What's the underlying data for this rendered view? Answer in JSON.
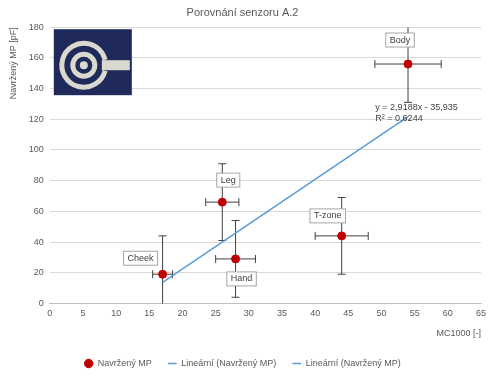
{
  "chart_data": {
    "type": "scatter",
    "title": "Porovnání senzoru A.2",
    "x_label": "MC1000 [-]",
    "y_label": "Navržený MP [pF]",
    "xlim": [
      0,
      65
    ],
    "xticks": [
      0,
      5,
      10,
      15,
      20,
      25,
      30,
      35,
      40,
      45,
      50,
      55,
      60,
      65
    ],
    "ylim": [
      0,
      180
    ],
    "yticks": [
      0,
      20,
      40,
      60,
      80,
      100,
      120,
      140,
      160,
      180
    ],
    "grid": "y",
    "legend": "bottom",
    "annotations": [
      "y = 2,9188x - 35,935",
      "R² = 0,6244"
    ],
    "series": [
      {
        "name": "Navržený MP",
        "color": "#c00000",
        "marker": "circle",
        "x": [
          17,
          26,
          28,
          44,
          54
        ],
        "values": [
          19,
          66,
          29,
          44,
          156
        ],
        "point_labels": [
          "Cheek",
          "Leg",
          "Hand",
          "T-zone",
          "Body"
        ],
        "x_error": [
          1.5,
          2.5,
          3,
          4,
          5
        ],
        "y_error": [
          25,
          25,
          25,
          25,
          25
        ]
      },
      {
        "name": "Lineární (Navržený MP)",
        "type": "line",
        "color": "#5b9bd5",
        "line_style": "solid",
        "x": [
          17,
          54
        ],
        "values": [
          13.7,
          121.7
        ]
      },
      {
        "name": "Lineární (Navržený MP)",
        "type": "line",
        "color": "#5b9bd5",
        "line_style": "dotted",
        "x": [],
        "values": []
      }
    ]
  }
}
